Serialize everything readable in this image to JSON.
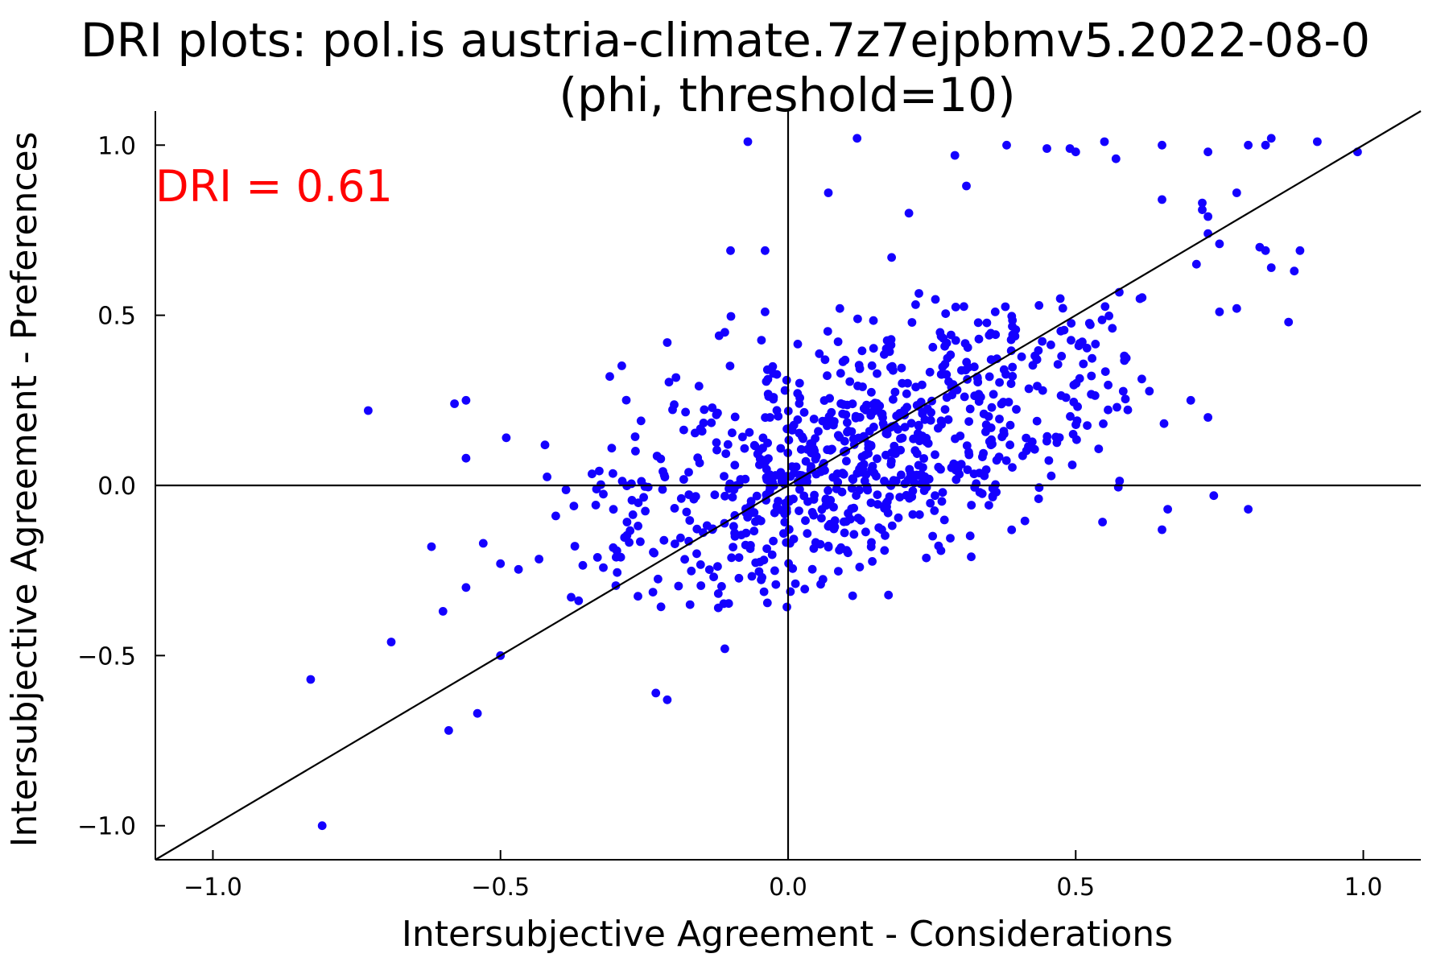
{
  "chart_data": {
    "type": "scatter",
    "title": "DRI plots: pol.is austria-climate.7z7ejpbmv5.2022-08-0",
    "subtitle": "(phi, threshold=10)",
    "xlabel": "Intersubjective Agreement - Considerations",
    "ylabel": "Intersubjective Agreement - Preferences",
    "xlim": [
      -1.1,
      1.1
    ],
    "ylim": [
      -1.1,
      1.1
    ],
    "x_ticks": [
      -1.0,
      -0.5,
      0.0,
      0.5,
      1.0
    ],
    "x_tick_labels": [
      "−1.0",
      "−0.5",
      "0.0",
      "0.5",
      "1.0"
    ],
    "y_ticks": [
      -1.0,
      -0.5,
      0.0,
      0.5,
      1.0
    ],
    "y_tick_labels": [
      "−1.0",
      "−0.5",
      "0.0",
      "0.5",
      "1.0"
    ],
    "grid": false,
    "reference_lines": [
      "x=0",
      "y=0",
      "y=x"
    ],
    "annotation": {
      "text": "DRI = 0.61",
      "color": "#ff0000",
      "position": "top-left"
    },
    "point_color": "#1400ff",
    "outlier_points": [
      [
        -0.73,
        0.22
      ],
      [
        -0.58,
        0.24
      ],
      [
        -0.56,
        0.25
      ],
      [
        -0.56,
        0.08
      ],
      [
        -0.49,
        0.14
      ],
      [
        -0.62,
        -0.18
      ],
      [
        -0.6,
        -0.37
      ],
      [
        -0.56,
        -0.3
      ],
      [
        -0.53,
        -0.17
      ],
      [
        -0.5,
        -0.23
      ],
      [
        -0.69,
        -0.46
      ],
      [
        -0.5,
        -0.5
      ],
      [
        -0.54,
        -0.67
      ],
      [
        -0.59,
        -0.72
      ],
      [
        -0.83,
        -0.57
      ],
      [
        -0.81,
        -1.0
      ],
      [
        -0.23,
        -0.61
      ],
      [
        -0.21,
        -0.63
      ],
      [
        -0.11,
        -0.48
      ],
      [
        -0.21,
        0.42
      ],
      [
        -0.12,
        0.44
      ],
      [
        -0.11,
        0.45
      ],
      [
        -0.1,
        0.69
      ],
      [
        -0.04,
        0.69
      ],
      [
        -0.07,
        1.01
      ],
      [
        0.12,
        1.02
      ],
      [
        0.07,
        0.86
      ],
      [
        0.21,
        0.8
      ],
      [
        0.31,
        0.88
      ],
      [
        0.29,
        0.97
      ],
      [
        0.38,
        1.0
      ],
      [
        0.45,
        0.99
      ],
      [
        0.49,
        0.99
      ],
      [
        0.5,
        0.98
      ],
      [
        0.55,
        1.01
      ],
      [
        0.57,
        0.96
      ],
      [
        0.65,
        1.0
      ],
      [
        0.73,
        0.98
      ],
      [
        0.8,
        1.0
      ],
      [
        0.83,
        1.0
      ],
      [
        0.84,
        1.02
      ],
      [
        0.92,
        1.01
      ],
      [
        0.99,
        0.98
      ],
      [
        0.65,
        0.84
      ],
      [
        0.72,
        0.83
      ],
      [
        0.78,
        0.86
      ],
      [
        0.75,
        0.71
      ],
      [
        0.82,
        0.7
      ],
      [
        0.83,
        0.69
      ],
      [
        0.84,
        0.64
      ],
      [
        0.89,
        0.69
      ],
      [
        0.88,
        0.63
      ],
      [
        0.87,
        0.48
      ],
      [
        0.78,
        0.52
      ],
      [
        0.75,
        0.51
      ],
      [
        0.71,
        0.65
      ],
      [
        0.73,
        0.74
      ],
      [
        0.73,
        0.79
      ],
      [
        0.72,
        0.81
      ],
      [
        0.7,
        0.25
      ],
      [
        0.73,
        0.2
      ],
      [
        0.74,
        -0.03
      ],
      [
        0.8,
        -0.07
      ],
      [
        0.66,
        -0.07
      ],
      [
        0.65,
        -0.13
      ],
      [
        -0.31,
        0.32
      ],
      [
        0.18,
        0.67
      ],
      [
        0.09,
        0.52
      ],
      [
        -0.04,
        0.51
      ]
    ],
    "cloud": {
      "centroid": [
        0.12,
        0.1
      ],
      "slope": 0.58,
      "x_std": 0.25,
      "residual_std": 0.18,
      "points_shown": 880,
      "seed": 20220801
    }
  }
}
